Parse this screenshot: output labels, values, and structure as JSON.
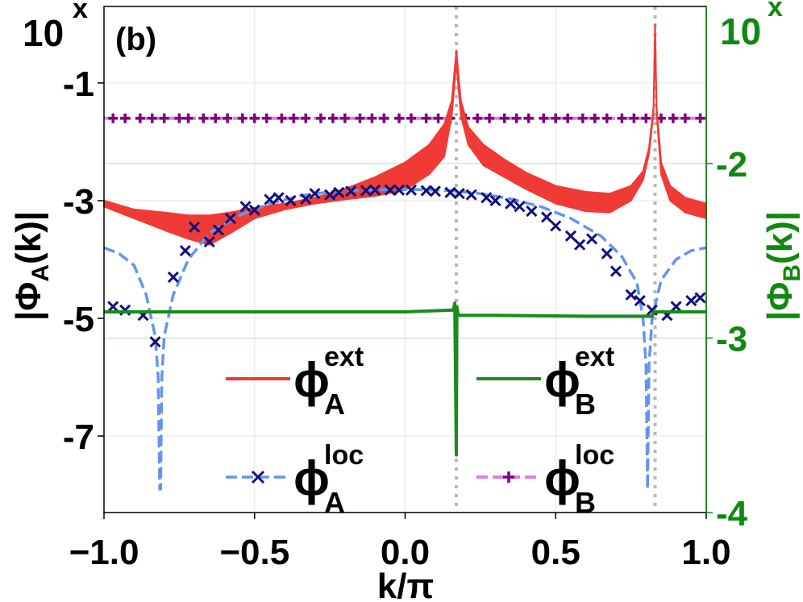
{
  "chart_data": {
    "type": "line",
    "panel_label": "(b)",
    "xlabel": "k/π",
    "ylabel_left": "|Φ_A(k)|",
    "ylabel_right": "|Φ_B(k)|",
    "left_axis": {
      "scale": "log10",
      "exponent_base_label": "10",
      "exponent_symbol": "x",
      "ylim": [
        -8.3,
        0.3
      ],
      "tick_values": [
        -1,
        -3,
        -5,
        -7
      ],
      "tick_labels": [
        "-1",
        "-3",
        "-5",
        "-7"
      ]
    },
    "right_axis": {
      "scale": "log10",
      "exponent_base_label": "10",
      "exponent_symbol": "x",
      "ylim": [
        -4.0,
        -1.1
      ],
      "tick_values": [
        -2,
        -3,
        -4
      ],
      "tick_labels": [
        "-2",
        "-3",
        "-4"
      ],
      "color": "#118811"
    },
    "xlim": [
      -1.0,
      1.0
    ],
    "x_ticks": [
      -1.0,
      -0.5,
      0.0,
      0.5,
      1.0
    ],
    "x_tick_labels": [
      "−1.0",
      "−0.5",
      "0.0",
      "0.5",
      "1.0"
    ],
    "vertical_lines": [
      0.17,
      0.83
    ],
    "colors": {
      "phiA_ext": "#f03a35",
      "phiA_loc_line": "#6495ed",
      "phiA_loc_marker": "#10107e",
      "phiB_ext": "#1c8a1c",
      "phiB_loc_line": "#e080e0",
      "phiB_loc_marker": "#800080",
      "vline": "#b8b8b8",
      "grid": "#e4e4e4",
      "right_axis": "#118811"
    },
    "series": [
      {
        "name": "phiA_ext",
        "axis": "left",
        "style": "band",
        "x": [
          -1.0,
          -0.9,
          -0.8,
          -0.72,
          -0.65,
          -0.58,
          -0.5,
          -0.4,
          -0.3,
          -0.2,
          -0.1,
          0.0,
          0.08,
          0.13,
          0.155,
          0.17,
          0.185,
          0.21,
          0.26,
          0.33,
          0.4,
          0.5,
          0.6,
          0.68,
          0.75,
          0.79,
          0.81,
          0.825,
          0.83,
          0.835,
          0.85,
          0.88,
          0.93,
          1.0
        ],
        "upper": [
          -3.0,
          -3.15,
          -3.2,
          -3.25,
          -3.25,
          -3.2,
          -3.12,
          -3.05,
          -2.95,
          -2.8,
          -2.6,
          -2.35,
          -2.05,
          -1.7,
          -1.3,
          -0.45,
          -1.3,
          -1.75,
          -2.05,
          -2.3,
          -2.52,
          -2.75,
          -2.85,
          -2.88,
          -2.75,
          -2.5,
          -2.1,
          -1.4,
          0.0,
          -1.4,
          -2.35,
          -2.75,
          -2.95,
          -3.05
        ],
        "lower": [
          -3.1,
          -3.3,
          -3.5,
          -3.65,
          -3.75,
          -3.55,
          -3.3,
          -3.15,
          -3.05,
          -2.98,
          -2.92,
          -2.82,
          -2.55,
          -2.25,
          -1.55,
          -0.65,
          -1.55,
          -2.05,
          -2.4,
          -2.6,
          -2.8,
          -3.05,
          -3.18,
          -3.2,
          -3.0,
          -2.65,
          -2.2,
          -1.5,
          -0.1,
          -1.5,
          -2.55,
          -3.0,
          -3.2,
          -3.3
        ]
      },
      {
        "name": "phiA_loc",
        "axis": "left",
        "style": "dashed-with-markers",
        "marker": "x",
        "marker_x": [
          -0.97,
          -0.93,
          -0.87,
          -0.83,
          -0.77,
          -0.73,
          -0.7,
          -0.65,
          -0.62,
          -0.58,
          -0.53,
          -0.5,
          -0.45,
          -0.42,
          -0.38,
          -0.33,
          -0.3,
          -0.25,
          -0.22,
          -0.18,
          -0.13,
          -0.1,
          -0.05,
          -0.02,
          0.02,
          0.07,
          0.1,
          0.15,
          0.18,
          0.22,
          0.27,
          0.3,
          0.35,
          0.38,
          0.42,
          0.47,
          0.5,
          0.55,
          0.58,
          0.62,
          0.67,
          0.7,
          0.75,
          0.78,
          0.82,
          0.87,
          0.9,
          0.95,
          0.98
        ],
        "marker_y": [
          -4.8,
          -4.86,
          -4.95,
          -5.4,
          -4.3,
          -3.85,
          -3.45,
          -3.7,
          -3.5,
          -3.3,
          -3.1,
          -3.16,
          -2.98,
          -2.95,
          -3.0,
          -2.97,
          -2.88,
          -2.9,
          -2.86,
          -2.84,
          -2.83,
          -2.82,
          -2.82,
          -2.82,
          -2.82,
          -2.83,
          -2.84,
          -2.86,
          -2.88,
          -2.9,
          -2.95,
          -3.0,
          -3.05,
          -3.1,
          -3.18,
          -3.28,
          -3.43,
          -3.6,
          -3.75,
          -3.65,
          -3.9,
          -4.2,
          -4.6,
          -4.7,
          -4.86,
          -4.95,
          -4.8,
          -4.7,
          -4.65
        ],
        "line_x": [
          -1.0,
          -0.95,
          -0.9,
          -0.86,
          -0.83,
          -0.82,
          -0.815,
          -0.812,
          -0.808,
          -0.8,
          -0.77,
          -0.72,
          -0.65,
          -0.55,
          -0.45,
          -0.35,
          -0.25,
          -0.15,
          -0.05,
          0.05,
          0.15,
          0.25,
          0.35,
          0.45,
          0.55,
          0.65,
          0.72,
          0.77,
          0.79,
          0.8,
          0.805,
          0.81,
          0.82,
          0.85,
          0.9,
          0.95,
          1.0
        ],
        "line_y": [
          -3.8,
          -3.9,
          -4.1,
          -4.6,
          -5.3,
          -6.0,
          -7.9,
          -7.9,
          -6.0,
          -5.3,
          -4.6,
          -4.0,
          -3.55,
          -3.25,
          -3.05,
          -2.92,
          -2.85,
          -2.82,
          -2.81,
          -2.81,
          -2.83,
          -2.88,
          -2.97,
          -3.1,
          -3.3,
          -3.6,
          -3.95,
          -4.4,
          -5.0,
          -5.8,
          -7.9,
          -5.8,
          -5.0,
          -4.35,
          -4.0,
          -3.85,
          -3.8
        ]
      },
      {
        "name": "phiB_ext",
        "axis": "right",
        "style": "solid",
        "x": [
          -1.0,
          -0.5,
          0.0,
          0.16,
          0.165,
          0.17,
          0.172,
          0.175,
          0.18,
          0.3,
          0.6,
          0.82,
          0.825,
          0.83,
          1.0
        ],
        "y": [
          -2.85,
          -2.85,
          -2.85,
          -2.84,
          -2.8,
          -3.67,
          -2.82,
          -2.86,
          -2.87,
          -2.87,
          -2.875,
          -2.875,
          -2.85,
          -2.85,
          -2.85
        ]
      },
      {
        "name": "phiB_loc",
        "axis": "left",
        "style": "dashed-with-markers",
        "marker": "+",
        "marker_x": [
          -0.97,
          -0.93,
          -0.88,
          -0.84,
          -0.8,
          -0.75,
          -0.72,
          -0.67,
          -0.63,
          -0.59,
          -0.54,
          -0.5,
          -0.46,
          -0.41,
          -0.37,
          -0.33,
          -0.28,
          -0.24,
          -0.2,
          -0.15,
          -0.11,
          -0.07,
          -0.02,
          0.02,
          0.07,
          0.11,
          0.15,
          0.2,
          0.24,
          0.28,
          0.33,
          0.37,
          0.41,
          0.46,
          0.5,
          0.54,
          0.59,
          0.63,
          0.67,
          0.72,
          0.76,
          0.8,
          0.85,
          0.89,
          0.93,
          0.98
        ],
        "y": -1.6
      }
    ],
    "legend": {
      "placement": "lower-center",
      "entries": [
        {
          "series": "phiA_ext",
          "symbol": "ϕ",
          "sub": "A",
          "sup": "ext"
        },
        {
          "series": "phiB_ext",
          "symbol": "ϕ",
          "sub": "B",
          "sup": "ext"
        },
        {
          "series": "phiA_loc",
          "symbol": "ϕ",
          "sub": "A",
          "sup": "loc"
        },
        {
          "series": "phiB_loc",
          "symbol": "ϕ",
          "sub": "B",
          "sup": "loc"
        }
      ]
    },
    "grid": true
  }
}
